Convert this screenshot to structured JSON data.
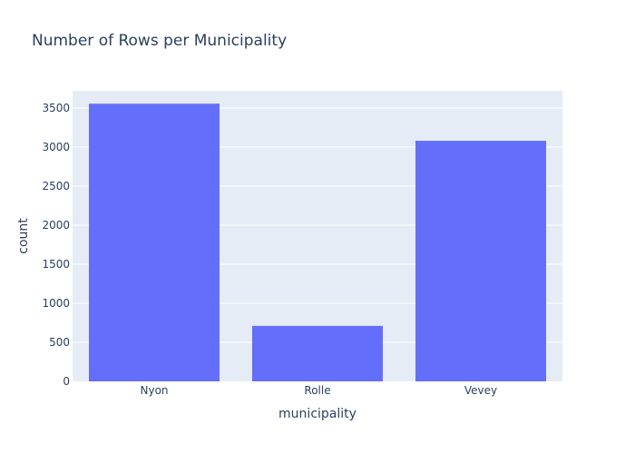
{
  "chart_data": {
    "type": "bar",
    "title": "Number of Rows per Municipality",
    "xlabel": "municipality",
    "ylabel": "count",
    "categories": [
      "Nyon",
      "Rolle",
      "Vevey"
    ],
    "values": [
      3555,
      710,
      3080
    ],
    "ylim": [
      0,
      3720
    ],
    "yticks": [
      0,
      500,
      1000,
      1500,
      2000,
      2500,
      3000,
      3500
    ],
    "ytick_labels": [
      "0",
      "500",
      "1000",
      "1500",
      "2000",
      "2500",
      "3000",
      "3500"
    ],
    "grid": true,
    "legend": "none",
    "colors": {
      "bar": "#636efa",
      "plot_background": "#e5ecf6",
      "gridline": "#ffffff",
      "text": "#2a3f5f"
    }
  }
}
